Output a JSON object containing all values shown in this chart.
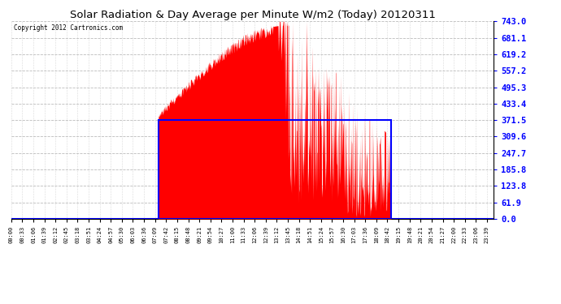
{
  "title": "Solar Radiation & Day Average per Minute W/m2 (Today) 20120311",
  "copyright": "Copyright 2012 Cartronics.com",
  "y_max": 743.0,
  "y_ticks": [
    0.0,
    61.9,
    123.8,
    185.8,
    247.7,
    309.6,
    371.5,
    433.4,
    495.3,
    557.2,
    619.2,
    681.1,
    743.0
  ],
  "bar_color": "#FF0000",
  "avg_box_color": "#0000FF",
  "background_color": "#FFFFFF",
  "n_minutes": 1440,
  "sunrise_minute": 439,
  "sunset_minute": 1132,
  "avg_value": 371.5,
  "peak_value": 743.0,
  "peak_minute": 802,
  "figwidth": 6.9,
  "figheight": 3.75,
  "dpi": 100
}
